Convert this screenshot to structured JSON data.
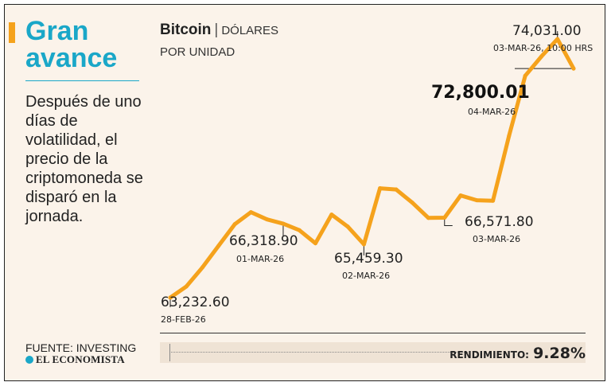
{
  "headline": {
    "line1": "Gran",
    "line2": "avance"
  },
  "body_text": "Después de uno días de volatilidad, el precio de la criptomoneda se disparó en la jornada.",
  "source": "FUENTE: INVESTING",
  "brand": "EL ECONOMISTA",
  "colors": {
    "accent": "#f5a21c",
    "headline": "#1aa7c8",
    "line": "#f5a21c",
    "background": "#fbf3ea"
  },
  "chart_data": {
    "type": "line",
    "title": "Bitcoin",
    "title_unit": "DÓLARES",
    "subtitle": "POR UNIDAD",
    "xlabel": "",
    "ylabel": "",
    "ylim": [
      62000,
      75000
    ],
    "x_range": [
      "28-FEB-26",
      "04-MAR-26"
    ],
    "series": [
      {
        "name": "Bitcoin",
        "values": [
          63232.6,
          63700,
          64500,
          65400,
          66300,
          66800,
          66500,
          66318.9,
          66050,
          65500,
          66700,
          66200,
          65459.3,
          67800,
          67750,
          67200,
          66560,
          66571.8,
          67500,
          67300,
          67280,
          70000,
          72500,
          73300,
          74031.0,
          72800.01
        ]
      }
    ],
    "annotations": [
      {
        "label": "start",
        "value": "63,232.60",
        "date": "28-FEB-26"
      },
      {
        "label": "mar1",
        "value": "66,318.90",
        "date": "01-MAR-26"
      },
      {
        "label": "mar2",
        "value": "65,459.30",
        "date": "02-MAR-26"
      },
      {
        "label": "mar3",
        "value": "66,571.80",
        "date": "03-MAR-26"
      },
      {
        "label": "peak",
        "value": "74,031.00",
        "date": "03-MAR-26, 10:00 HRS"
      },
      {
        "label": "last",
        "value": "72,800.01",
        "date": "04-MAR-26"
      }
    ],
    "performance_label": "RENDIMIENTO:",
    "performance_value": "9.28%"
  }
}
